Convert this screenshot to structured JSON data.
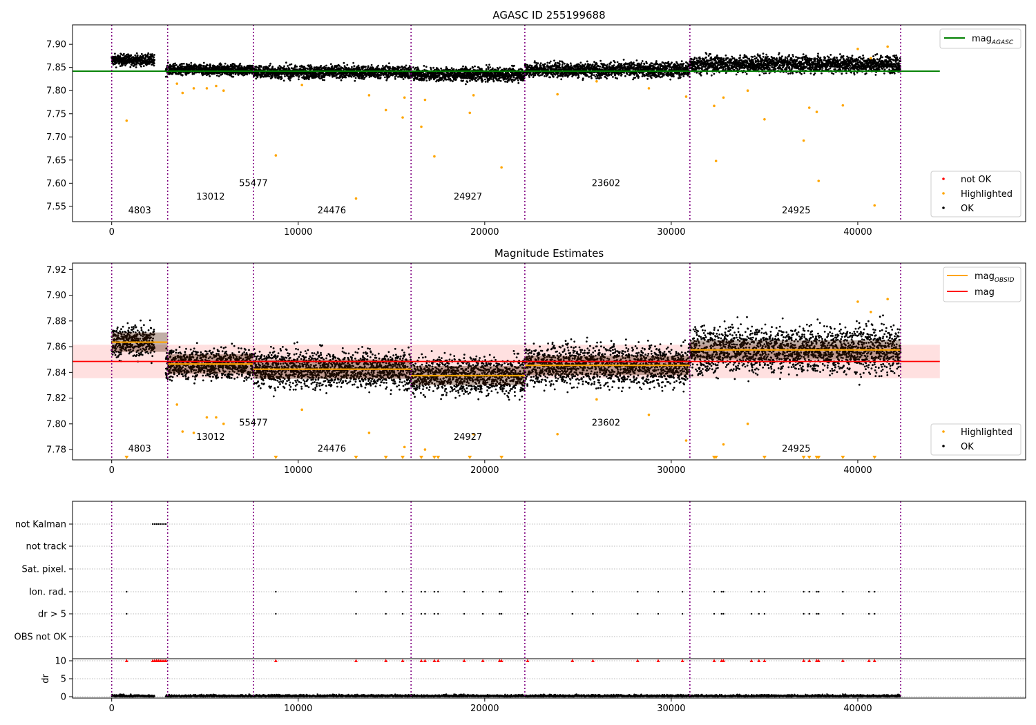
{
  "chart_data": [
    {
      "type": "scatter",
      "title": "AGASC ID 255199688",
      "xlim": [
        -2100,
        49000
      ],
      "ylim": [
        7.517,
        7.942
      ],
      "x_ticks": [
        0,
        10000,
        20000,
        30000,
        40000
      ],
      "x_tick_labels": [
        "0",
        "10000",
        "20000",
        "30000",
        "40000"
      ],
      "y_ticks": [
        7.55,
        7.6,
        7.65,
        7.7,
        7.75,
        7.8,
        7.85,
        7.9
      ],
      "y_tick_labels": [
        "7.55",
        "7.60",
        "7.65",
        "7.70",
        "7.75",
        "7.80",
        "7.85",
        "7.90"
      ],
      "obs_boundaries": [
        0,
        3000,
        7600,
        16050,
        22150,
        31000,
        42300
      ],
      "obs_labels": [
        {
          "text": "4803",
          "x": 1500,
          "y": 7.535
        },
        {
          "text": "13012",
          "x": 5300,
          "y": 7.565
        },
        {
          "text": "55477",
          "x": 7600,
          "y": 7.594
        },
        {
          "text": "24476",
          "x": 11800,
          "y": 7.535
        },
        {
          "text": "24927",
          "x": 19100,
          "y": 7.565
        },
        {
          "text": "23602",
          "x": 26500,
          "y": 7.594
        },
        {
          "text": "24925",
          "x": 36700,
          "y": 7.535
        }
      ],
      "ok_segments": [
        {
          "x0": 0,
          "x1": 2300,
          "mean": 7.866,
          "spread": 0.012
        },
        {
          "x0": 2900,
          "x1": 7600,
          "mean": 7.845,
          "spread": 0.012
        },
        {
          "x0": 7600,
          "x1": 16050,
          "mean": 7.84,
          "spread": 0.014
        },
        {
          "x0": 16050,
          "x1": 22150,
          "mean": 7.835,
          "spread": 0.014
        },
        {
          "x0": 22150,
          "x1": 31000,
          "mean": 7.845,
          "spread": 0.016
        },
        {
          "x0": 31000,
          "x1": 42300,
          "mean": 7.857,
          "spread": 0.018
        }
      ],
      "highlighted_points": [
        [
          800,
          7.735
        ],
        [
          3500,
          7.815
        ],
        [
          3800,
          7.795
        ],
        [
          4400,
          7.805
        ],
        [
          5100,
          7.805
        ],
        [
          5600,
          7.81
        ],
        [
          6000,
          7.8
        ],
        [
          8800,
          7.66
        ],
        [
          10200,
          7.812
        ],
        [
          13100,
          7.567
        ],
        [
          13800,
          7.79
        ],
        [
          14700,
          7.758
        ],
        [
          15600,
          7.742
        ],
        [
          15700,
          7.785
        ],
        [
          16600,
          7.722
        ],
        [
          16800,
          7.78
        ],
        [
          17300,
          7.658
        ],
        [
          19200,
          7.752
        ],
        [
          19400,
          7.79
        ],
        [
          20900,
          7.634
        ],
        [
          23900,
          7.792
        ],
        [
          26000,
          7.82
        ],
        [
          28800,
          7.805
        ],
        [
          30800,
          7.787
        ],
        [
          32300,
          7.767
        ],
        [
          32400,
          7.648
        ],
        [
          32800,
          7.785
        ],
        [
          34100,
          7.8
        ],
        [
          35000,
          7.738
        ],
        [
          37100,
          7.692
        ],
        [
          37400,
          7.763
        ],
        [
          37800,
          7.754
        ],
        [
          37900,
          7.605
        ],
        [
          39200,
          7.768
        ],
        [
          40900,
          7.552
        ],
        [
          40000,
          7.89
        ],
        [
          40700,
          7.87
        ],
        [
          41600,
          7.895
        ]
      ],
      "mag_agasc": 7.842,
      "mag_agasc_x": [
        -2100,
        44400
      ],
      "legend_top": [
        {
          "label": "mag",
          "subscript": "AGASC",
          "color": "#008000"
        }
      ],
      "legend_bottom": [
        {
          "label": "not OK",
          "color": "#ff0000"
        },
        {
          "label": "Highlighted",
          "color": "#ffa500"
        },
        {
          "label": "OK",
          "color": "#000000"
        }
      ]
    },
    {
      "type": "scatter",
      "title": "Magnitude Estimates",
      "xlim": [
        -2100,
        49000
      ],
      "ylim": [
        7.772,
        7.925
      ],
      "x_ticks": [
        0,
        10000,
        20000,
        30000,
        40000
      ],
      "x_tick_labels": [
        "0",
        "10000",
        "20000",
        "30000",
        "40000"
      ],
      "y_ticks": [
        7.78,
        7.8,
        7.82,
        7.84,
        7.86,
        7.88,
        7.9,
        7.92
      ],
      "y_tick_labels": [
        "7.78",
        "7.80",
        "7.82",
        "7.84",
        "7.86",
        "7.88",
        "7.90",
        "7.92"
      ],
      "obs_labels": [
        {
          "text": "4803",
          "x": 1500,
          "y": 7.7785
        },
        {
          "text": "13012",
          "x": 5300,
          "y": 7.7875
        },
        {
          "text": "55477",
          "x": 7600,
          "y": 7.7985
        },
        {
          "text": "24476",
          "x": 11800,
          "y": 7.7785
        },
        {
          "text": "24927",
          "x": 19100,
          "y": 7.7875
        },
        {
          "text": "23602",
          "x": 26500,
          "y": 7.7985
        },
        {
          "text": "24925",
          "x": 36700,
          "y": 7.7785
        }
      ],
      "mag_obsid": [
        {
          "x0": 0,
          "x1": 3000,
          "value": 7.8635
        },
        {
          "x0": 3000,
          "x1": 7600,
          "value": 7.8465
        },
        {
          "x0": 7600,
          "x1": 16050,
          "value": 7.8425
        },
        {
          "x0": 16050,
          "x1": 22150,
          "value": 7.8375
        },
        {
          "x0": 22150,
          "x1": 31000,
          "value": 7.8455
        },
        {
          "x0": 31000,
          "x1": 42300,
          "value": 7.8575
        }
      ],
      "mag": 7.8485,
      "mag_band": [
        7.8355,
        7.8615
      ],
      "mag_x": [
        -2100,
        44400
      ],
      "highlighted_points": [
        [
          3500,
          7.815
        ],
        [
          3800,
          7.794
        ],
        [
          4400,
          7.793
        ],
        [
          5100,
          7.805
        ],
        [
          5600,
          7.805
        ],
        [
          6000,
          7.8
        ],
        [
          10200,
          7.811
        ],
        [
          13800,
          7.793
        ],
        [
          15700,
          7.782
        ],
        [
          16800,
          7.78
        ],
        [
          19400,
          7.792
        ],
        [
          23900,
          7.792
        ],
        [
          26000,
          7.819
        ],
        [
          28800,
          7.807
        ],
        [
          30800,
          7.787
        ],
        [
          32800,
          7.784
        ],
        [
          34100,
          7.8
        ],
        [
          40000,
          7.895
        ],
        [
          40700,
          7.887
        ],
        [
          41600,
          7.897
        ]
      ],
      "out_of_range_markers": [
        800,
        8800,
        13100,
        14700,
        15600,
        16600,
        17300,
        17500,
        19200,
        20900,
        32300,
        32400,
        35000,
        37100,
        37400,
        37800,
        37900,
        39200,
        40900
      ],
      "legend_top": [
        {
          "label": "mag",
          "subscript": "OBSID",
          "color": "#ffa500"
        },
        {
          "label": "mag",
          "subscript": "",
          "color": "#ff0000"
        }
      ],
      "legend_bottom": [
        {
          "label": "Highlighted",
          "color": "#ffa500"
        },
        {
          "label": "OK",
          "color": "#000000"
        }
      ]
    },
    {
      "type": "scatter",
      "title": "",
      "xlim": [
        -2100,
        49000
      ],
      "x_ticks": [
        0,
        10000,
        20000,
        30000,
        40000
      ],
      "x_tick_labels": [
        "0",
        "10000",
        "20000",
        "30000",
        "40000"
      ],
      "flag_rows": [
        "not Kalman",
        "not track",
        "Sat. pixel.",
        "Ion. rad.",
        "dr > 5",
        "OBS not OK"
      ],
      "flag_points": {
        "not Kalman": [
          2200,
          2300,
          2400,
          2500,
          2600,
          2700,
          2800,
          2900
        ],
        "Ion. rad.": [
          800,
          8800,
          13100,
          14700,
          15600,
          16600,
          16800,
          17300,
          17500,
          18900,
          19900,
          20800,
          20900,
          22300,
          24700,
          25800,
          28200,
          29300,
          30600,
          32300,
          32700,
          32800,
          34300,
          34700,
          35000,
          37100,
          37400,
          37800,
          37900,
          39200,
          40600,
          40900
        ],
        "dr > 5": [
          800,
          8800,
          13100,
          14700,
          15600,
          16600,
          16800,
          17300,
          17500,
          18900,
          19900,
          20800,
          20900,
          22300,
          24700,
          25800,
          28200,
          29300,
          30600,
          32300,
          32700,
          32800,
          34300,
          34700,
          35000,
          37100,
          37400,
          37800,
          37900,
          39200,
          40600,
          40900
        ]
      },
      "dr_ylabel": "dr",
      "dr_ticks": [
        0,
        5,
        10
      ],
      "dr_tick_labels": [
        "0",
        "5",
        "10"
      ],
      "dr_clipped": [
        800,
        2200,
        2300,
        2400,
        2500,
        2600,
        2700,
        2800,
        2900,
        8800,
        13100,
        14700,
        15600,
        16600,
        16800,
        17300,
        17500,
        18900,
        19900,
        20800,
        20900,
        22300,
        24700,
        25800,
        28200,
        29300,
        30600,
        32300,
        32700,
        32800,
        34300,
        34700,
        35000,
        37100,
        37400,
        37800,
        37900,
        39200,
        40600,
        40900
      ]
    }
  ]
}
